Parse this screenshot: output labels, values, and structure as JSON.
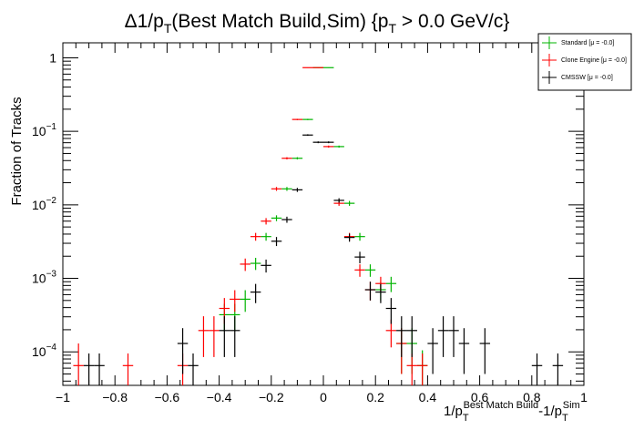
{
  "chart_data": {
    "type": "scatter",
    "title": {
      "prefix": "Δ1/p",
      "prefix_sub": "T",
      "middle": "(Best Match Build,Sim) {p",
      "middle_sub": "T",
      "suffix": " > 0.0 GeV/c}"
    },
    "xlabel": {
      "a": "1/p",
      "a_sub": "T",
      "a_sup": "Best Match Build",
      "b": "-1/p",
      "b_sub": "T",
      "b_sup": "Sim"
    },
    "ylabel": "Fraction of Tracks",
    "xlim": [
      -1.0,
      1.0
    ],
    "ylim": [
      3.5e-05,
      1.6
    ],
    "y_log": true,
    "x_ticks": [
      {
        "v": -1.0,
        "label": "−1"
      },
      {
        "v": -0.8,
        "label": "−0.8"
      },
      {
        "v": -0.6,
        "label": "−0.6"
      },
      {
        "v": -0.4,
        "label": "−0.4"
      },
      {
        "v": -0.2,
        "label": "−0.2"
      },
      {
        "v": 0.0,
        "label": "0"
      },
      {
        "v": 0.2,
        "label": "0.2"
      },
      {
        "v": 0.4,
        "label": "0.4"
      },
      {
        "v": 0.6,
        "label": "0.6"
      },
      {
        "v": 0.8,
        "label": "0.8"
      },
      {
        "v": 1.0,
        "label": "1"
      }
    ],
    "y_ticks": [
      {
        "v": 1,
        "base": "1",
        "exp": ""
      },
      {
        "v": 0.1,
        "base": "10",
        "exp": "−1"
      },
      {
        "v": 0.01,
        "base": "10",
        "exp": "−2"
      },
      {
        "v": 0.001,
        "base": "10",
        "exp": "−3"
      },
      {
        "v": 0.0001,
        "base": "10",
        "exp": "−4"
      }
    ],
    "bin_half_width": 0.02,
    "legend": {
      "position": "top-right",
      "entries": [
        {
          "label": "Standard",
          "extra": "[μ = -0.0]",
          "color": "#00b400"
        },
        {
          "label": "Clone Engine",
          "extra": "[μ = -0.0]",
          "color": "#ff0000"
        },
        {
          "label": "CMSSW",
          "extra": "[μ = -0.0]",
          "color": "#000000"
        }
      ]
    },
    "series": [
      {
        "name": "Standard",
        "color": "#00b400",
        "points": [
          [
            -0.38,
            0.00032,
            0.00013
          ],
          [
            -0.34,
            0.00032,
            0.00013
          ],
          [
            -0.3,
            0.00052,
            0.00017
          ],
          [
            -0.26,
            0.0016,
            0.0003
          ],
          [
            -0.22,
            0.0037,
            0.00045
          ],
          [
            -0.18,
            0.0066,
            0.0006
          ],
          [
            -0.14,
            0.0165,
            0.001
          ],
          [
            -0.1,
            0.043,
            0.0015
          ],
          [
            -0.06,
            0.145,
            0.003
          ],
          [
            -0.02,
            0.735,
            0.006
          ],
          [
            0.02,
            0.735,
            0.006
          ],
          [
            0.06,
            0.062,
            0.002
          ],
          [
            0.1,
            0.0105,
            0.0008
          ],
          [
            0.14,
            0.0037,
            0.00045
          ],
          [
            0.18,
            0.0013,
            0.00025
          ],
          [
            0.22,
            0.0007,
            0.0002
          ],
          [
            0.26,
            0.00085,
            0.0002
          ],
          [
            0.3,
            0.00013,
            8e-05
          ],
          [
            0.34,
            0.00013,
            8e-05
          ],
          [
            0.38,
            6.5e-05,
            4e-05
          ]
        ]
      },
      {
        "name": "Clone Engine",
        "color": "#ff0000",
        "points": [
          [
            -0.94,
            6.5e-05,
            6.5e-05
          ],
          [
            -0.75,
            6.5e-05,
            3e-05
          ],
          [
            -0.54,
            6.5e-05,
            3e-05
          ],
          [
            -0.46,
            0.000195,
            0.00011
          ],
          [
            -0.42,
            0.000195,
            0.00011
          ],
          [
            -0.38,
            0.00039,
            0.00015
          ],
          [
            -0.34,
            0.00052,
            0.00017
          ],
          [
            -0.3,
            0.00156,
            0.0003
          ],
          [
            -0.26,
            0.0037,
            0.00045
          ],
          [
            -0.22,
            0.006,
            0.0006
          ],
          [
            -0.18,
            0.0165,
            0.001
          ],
          [
            -0.14,
            0.043,
            0.0015
          ],
          [
            -0.1,
            0.145,
            0.003
          ],
          [
            -0.06,
            0.735,
            0.006
          ],
          [
            -0.02,
            0.735,
            0.006
          ],
          [
            0.02,
            0.062,
            0.002
          ],
          [
            0.06,
            0.0105,
            0.0008
          ],
          [
            0.1,
            0.0037,
            0.00045
          ],
          [
            0.14,
            0.0013,
            0.00025
          ],
          [
            0.18,
            0.0007,
            0.0002
          ],
          [
            0.22,
            0.00085,
            0.0002
          ],
          [
            0.26,
            0.000195,
            8e-05
          ],
          [
            0.3,
            0.00013,
            8e-05
          ],
          [
            0.34,
            6.5e-05,
            3e-05
          ],
          [
            0.38,
            6.5e-05,
            3e-05
          ]
        ]
      },
      {
        "name": "CMSSW",
        "color": "#000000",
        "points": [
          [
            -0.9,
            6.5e-05,
            3e-05
          ],
          [
            -0.86,
            6.5e-05,
            3e-05
          ],
          [
            -0.54,
            0.00013,
            8e-05
          ],
          [
            -0.5,
            6.5e-05,
            3e-05
          ],
          [
            -0.38,
            0.000195,
            0.00011
          ],
          [
            -0.34,
            0.000195,
            0.00011
          ],
          [
            -0.26,
            0.00065,
            0.00019
          ],
          [
            -0.22,
            0.0015,
            0.0003
          ],
          [
            -0.18,
            0.0032,
            0.00045
          ],
          [
            -0.14,
            0.0063,
            0.0006
          ],
          [
            -0.1,
            0.016,
            0.001
          ],
          [
            -0.06,
            0.089,
            0.0022
          ],
          [
            -0.02,
            0.071,
            0.002
          ],
          [
            0.02,
            0.071,
            0.002
          ],
          [
            0.06,
            0.0115,
            0.0008
          ],
          [
            0.1,
            0.0036,
            0.00045
          ],
          [
            0.14,
            0.00195,
            0.00035
          ],
          [
            0.18,
            0.0007,
            0.0002
          ],
          [
            0.22,
            0.00065,
            0.00019
          ],
          [
            0.26,
            0.00039,
            0.00015
          ],
          [
            0.3,
            0.000195,
            0.00011
          ],
          [
            0.34,
            0.000195,
            0.00011
          ],
          [
            0.42,
            0.00013,
            8e-05
          ],
          [
            0.46,
            0.000195,
            0.00011
          ],
          [
            0.5,
            0.000195,
            0.00011
          ],
          [
            0.54,
            0.00013,
            8e-05
          ],
          [
            0.62,
            0.00013,
            8e-05
          ],
          [
            0.82,
            6.5e-05,
            3e-05
          ],
          [
            0.9,
            6.5e-05,
            3e-05
          ]
        ]
      }
    ]
  }
}
